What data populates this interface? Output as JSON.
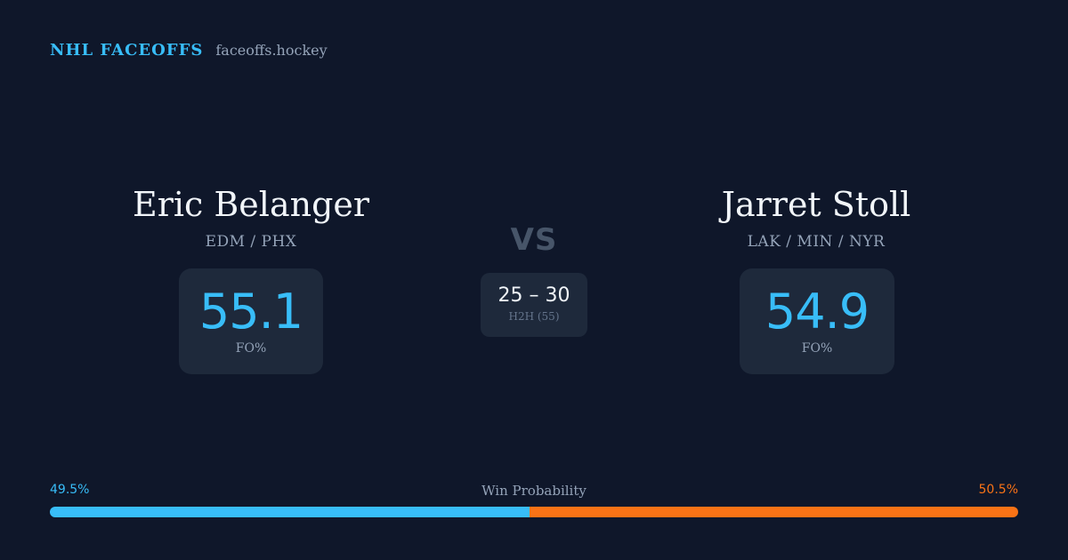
{
  "header": {
    "brand": "NHL FACEOFFS",
    "site": "faceoffs.hockey"
  },
  "colors": {
    "background": "#0f172a",
    "card": "#1e293b",
    "accent_blue": "#38bdf8",
    "accent_orange": "#f97316",
    "muted": "#94a3b8"
  },
  "players": {
    "left": {
      "name": "Eric Belanger",
      "teams": "EDM / PHX",
      "fo_pct": "55.1",
      "fo_label": "FO%"
    },
    "right": {
      "name": "Jarret Stoll",
      "teams": "LAK / MIN / NYR",
      "fo_pct": "54.9",
      "fo_label": "FO%"
    }
  },
  "matchup": {
    "vs": "VS",
    "h2h_score": "25 – 30",
    "h2h_label": "H2H (55)"
  },
  "win_probability": {
    "title": "Win Probability",
    "left_label": "49.5%",
    "right_label": "50.5%",
    "left_value": 49.5,
    "right_value": 50.5
  }
}
